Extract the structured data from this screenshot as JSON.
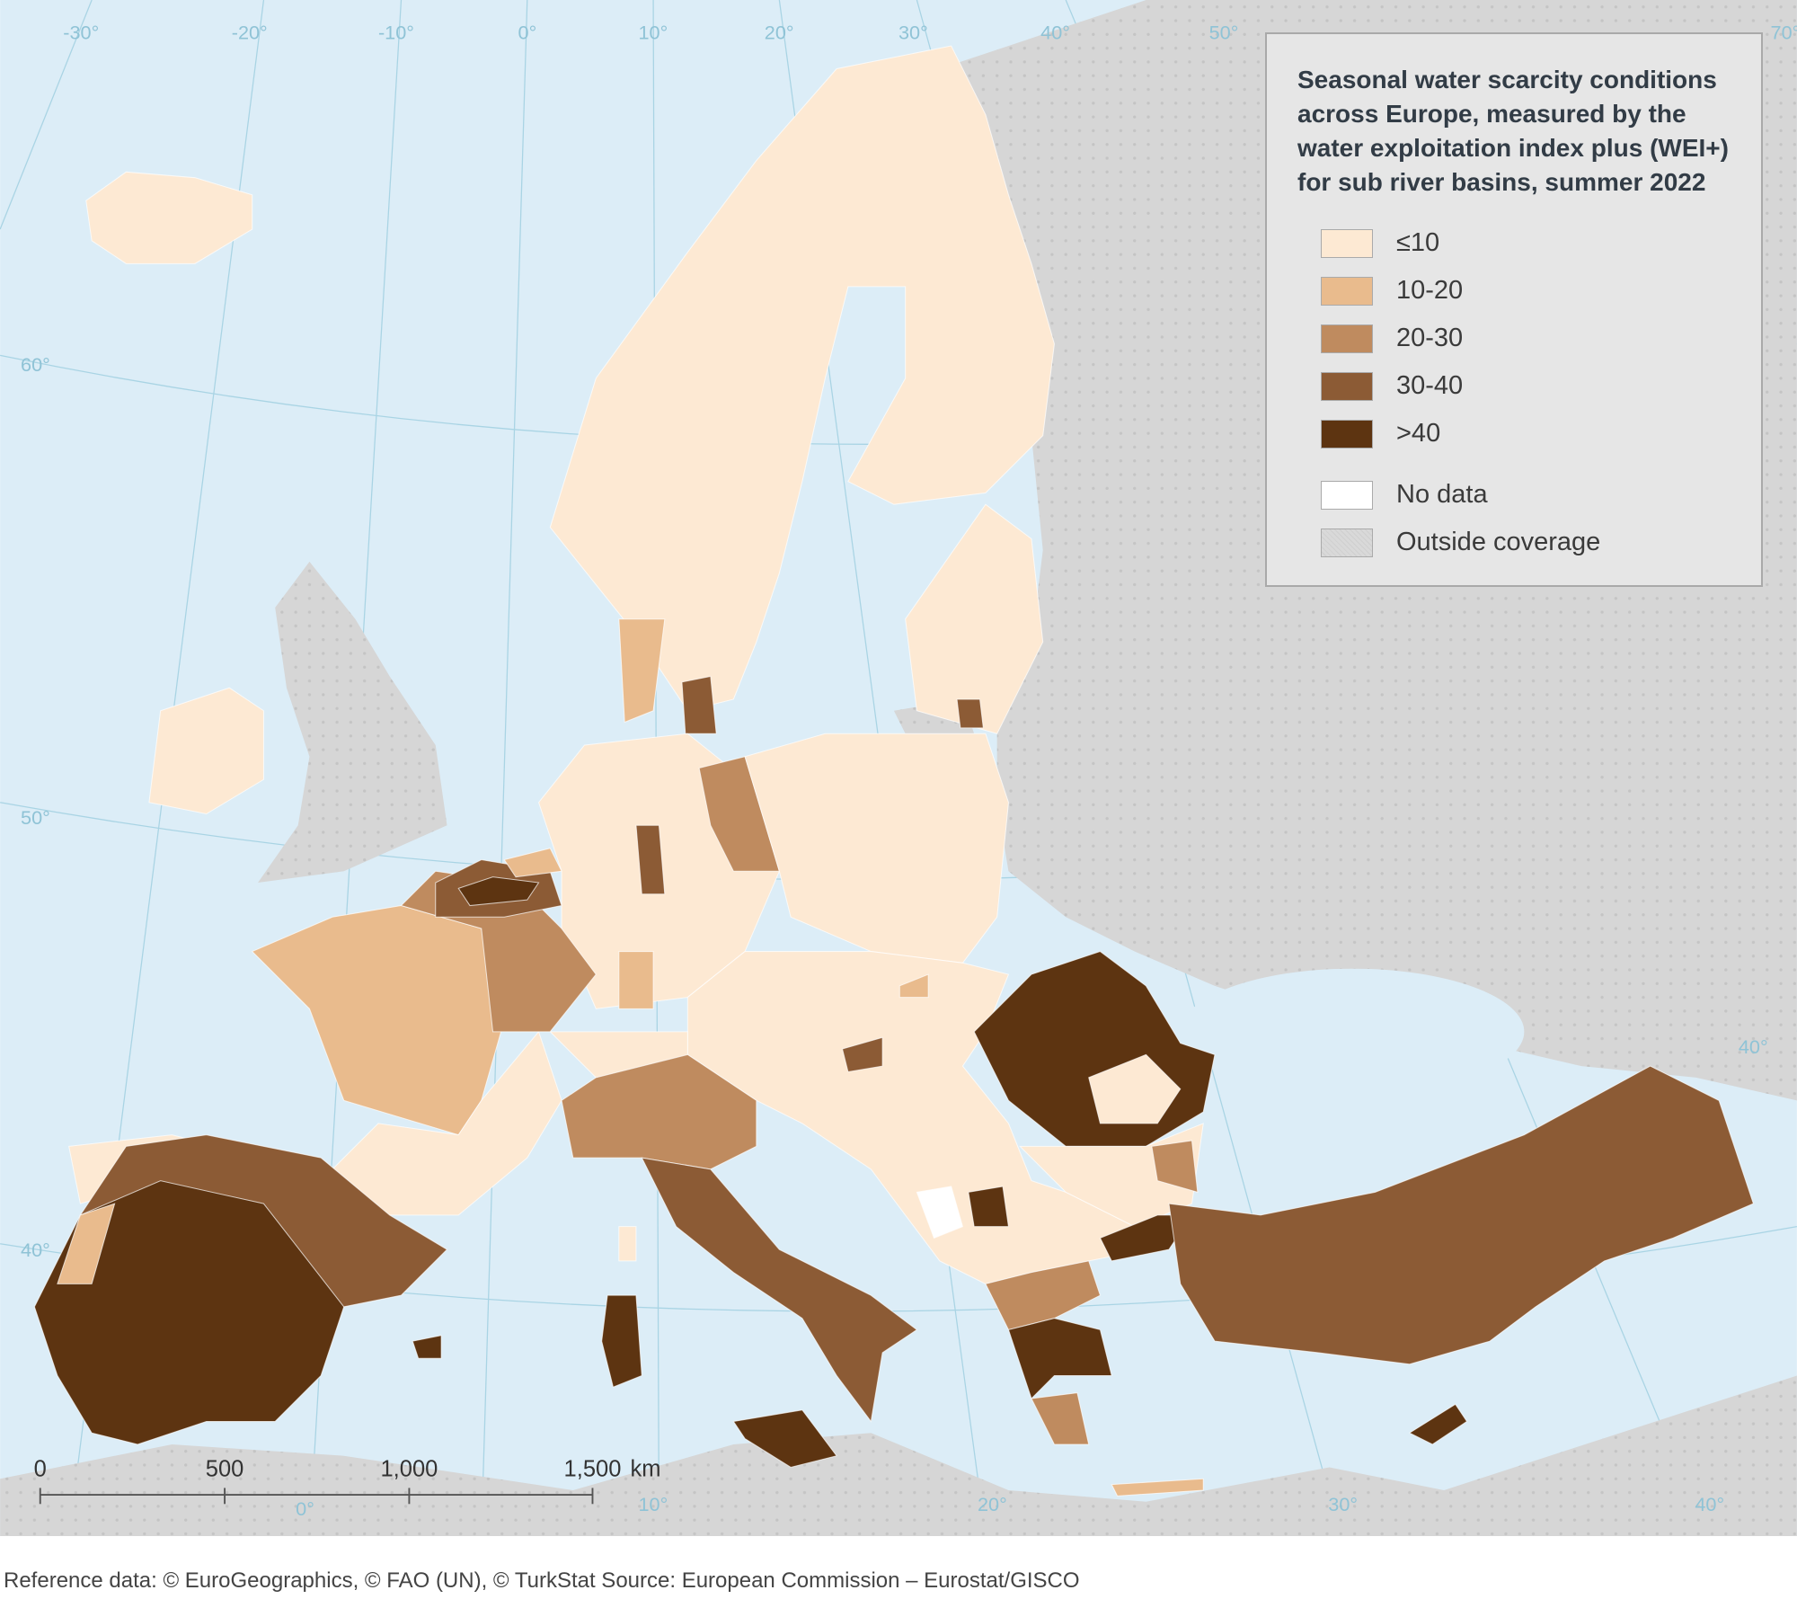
{
  "title": "Seasonal water scarcity conditions across Europe, measured by the water exploitation index plus (WEI+) for sub river basins, summer 2022",
  "legend": {
    "items": [
      {
        "label": "≤10",
        "color": "#fde9d3"
      },
      {
        "label": "10-20",
        "color": "#e9bb8d"
      },
      {
        "label": "20-30",
        "color": "#bf8b5f"
      },
      {
        "label": "30-40",
        "color": "#8c5b35"
      },
      {
        "label": ">40",
        "color": "#5d3411"
      },
      {
        "label": "No data",
        "color": "#ffffff"
      },
      {
        "label": "Outside coverage",
        "color": "#d9d9d9"
      }
    ]
  },
  "graticule": {
    "top": [
      "-30°",
      "-20°",
      "-10°",
      "0°",
      "10°",
      "20°",
      "30°",
      "40°",
      "50°",
      "70°"
    ],
    "bottom": [
      "0°",
      "10°",
      "20°",
      "30°",
      "40°"
    ],
    "left": [
      "60°",
      "50°",
      "40°"
    ],
    "right": [
      "40°"
    ]
  },
  "scale_bar": {
    "labels": [
      "0",
      "500",
      "1,000",
      "1,500"
    ],
    "unit": "km"
  },
  "footer": "Reference data: © EuroGeographics, © FAO (UN), © TurkStat Source: European Commission – Eurostat/GISCO"
}
